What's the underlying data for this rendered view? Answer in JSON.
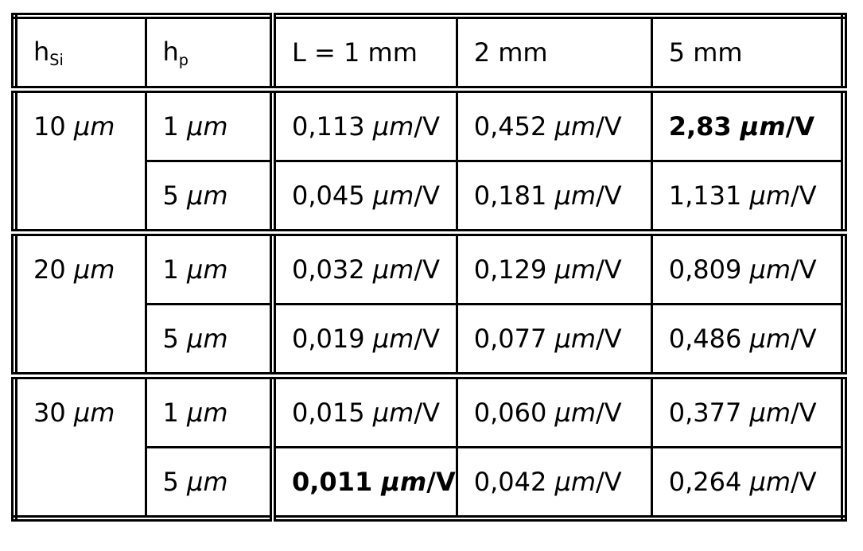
{
  "table": {
    "header": {
      "h_si": {
        "base": "h",
        "sub": "Si"
      },
      "h_p": {
        "base": "h",
        "sub": "p"
      },
      "cols": [
        "L = 1 mm",
        "2 mm",
        "5 mm"
      ]
    },
    "groups": [
      {
        "h_si": "10 μm",
        "rows": [
          {
            "h_p": "1 μm",
            "values": [
              "0,113 μm/V",
              "0,452 μm/V",
              "2,83 μm/V"
            ],
            "bold": [
              false,
              false,
              true
            ]
          },
          {
            "h_p": "5 μm",
            "values": [
              "0,045 μm/V",
              "0,181 μm/V",
              "1,131 μm/V"
            ],
            "bold": [
              false,
              false,
              false
            ]
          }
        ]
      },
      {
        "h_si": "20 μm",
        "rows": [
          {
            "h_p": "1 μm",
            "values": [
              "0,032 μm/V",
              "0,129 μm/V",
              "0,809 μm/V"
            ],
            "bold": [
              false,
              false,
              false
            ]
          },
          {
            "h_p": "5 μm",
            "values": [
              "0,019 μm/V",
              "0,077 μm/V",
              "0,486 μm/V"
            ],
            "bold": [
              false,
              false,
              false
            ]
          }
        ]
      },
      {
        "h_si": "30 μm",
        "rows": [
          {
            "h_p": "1 μm",
            "values": [
              "0,015 μm/V",
              "0,060 μm/V",
              "0,377 μm/V"
            ],
            "bold": [
              false,
              false,
              false
            ]
          },
          {
            "h_p": "5 μm",
            "values": [
              "0,011 μm/V",
              "0,042 μm/V",
              "0,264 μm/V"
            ],
            "bold": [
              true,
              false,
              false
            ]
          }
        ]
      }
    ]
  }
}
